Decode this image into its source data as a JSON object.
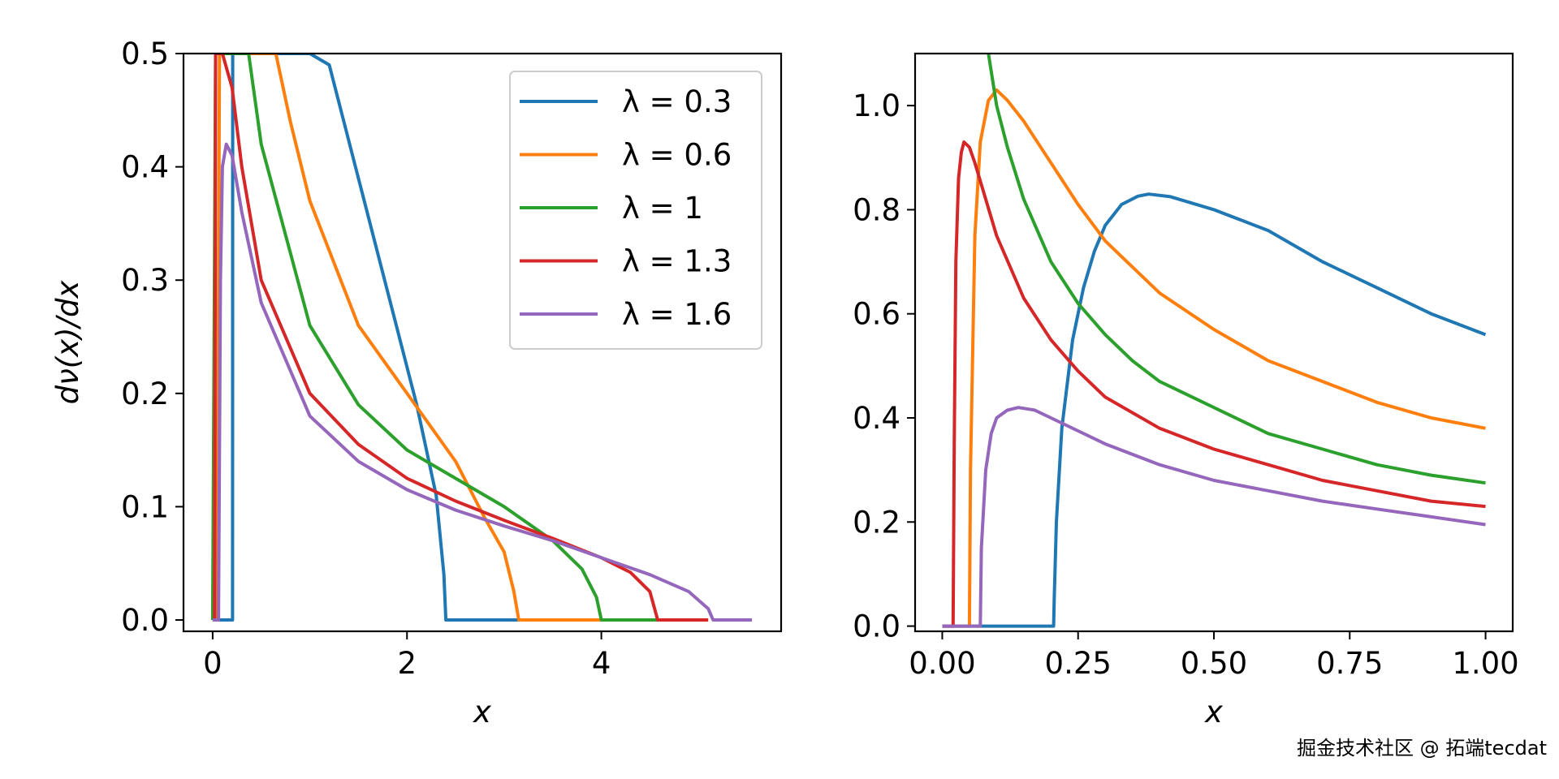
{
  "watermark": "掘金技术社区 @ 拓端tecdat",
  "chart_data": [
    {
      "type": "line",
      "xlabel": "x",
      "ylabel": "dν(x)/dx",
      "xlim": [
        -0.3,
        5.85
      ],
      "ylim": [
        -0.01,
        0.5
      ],
      "xticks": [
        0,
        2,
        4
      ],
      "xtick_labels": [
        "0",
        "2",
        "4"
      ],
      "yticks": [
        0.0,
        0.1,
        0.2,
        0.3,
        0.4,
        0.5
      ],
      "ytick_labels": [
        "0.0",
        "0.1",
        "0.2",
        "0.3",
        "0.4",
        "0.5"
      ],
      "legend_position": "top-right",
      "grid": false,
      "series": [
        {
          "name": "λ = 0.3",
          "color": "#1f77b4",
          "lambda": 0.3,
          "x": [
            0,
            0.2,
            0.205,
            0.206,
            0.22,
            0.25,
            0.3,
            0.5,
            1.0,
            1.2,
            1.5,
            1.8,
            2.1,
            2.3,
            2.38,
            2.4,
            2.41,
            2.6,
            3.0,
            3.6
          ],
          "y": [
            0,
            0,
            0,
            0.5,
            0.5,
            0.5,
            0.5,
            0.5,
            0.5,
            0.49,
            0.39,
            0.29,
            0.19,
            0.11,
            0.04,
            0.0,
            0,
            0,
            0,
            0
          ]
        },
        {
          "name": "λ = 0.6",
          "color": "#ff7f0e",
          "lambda": 0.6,
          "x": [
            0,
            0.047,
            0.07,
            0.1,
            0.3,
            0.5,
            0.65,
            0.8,
            1.0,
            1.5,
            2.0,
            2.5,
            2.8,
            3.0,
            3.1,
            3.15,
            3.6,
            4.1
          ],
          "y": [
            0,
            0,
            0.5,
            0.5,
            0.5,
            0.5,
            0.5,
            0.44,
            0.37,
            0.26,
            0.2,
            0.14,
            0.09,
            0.06,
            0.025,
            0,
            0,
            0
          ]
        },
        {
          "name": "λ = 1",
          "color": "#2ca02c",
          "lambda": 1,
          "x": [
            0,
            0.03,
            0.05,
            0.1,
            0.2,
            0.37,
            0.5,
            1.0,
            1.5,
            2.0,
            2.5,
            3.0,
            3.5,
            3.8,
            3.95,
            4.0,
            4.3,
            4.6
          ],
          "y": [
            0,
            0.5,
            0.5,
            0.5,
            0.5,
            0.5,
            0.42,
            0.26,
            0.19,
            0.15,
            0.125,
            0.1,
            0.07,
            0.045,
            0.02,
            0,
            0,
            0
          ]
        },
        {
          "name": "λ = 1.3",
          "color": "#d62728",
          "lambda": 1.3,
          "x": [
            0,
            0.02,
            0.03,
            0.1,
            0.2,
            0.3,
            0.5,
            1.0,
            1.5,
            2.0,
            2.5,
            3.0,
            3.5,
            4.0,
            4.3,
            4.5,
            4.58,
            4.8,
            5.1
          ],
          "y": [
            0,
            0,
            0.5,
            0.5,
            0.47,
            0.4,
            0.3,
            0.2,
            0.155,
            0.125,
            0.105,
            0.088,
            0.072,
            0.055,
            0.042,
            0.025,
            0,
            0,
            0
          ]
        },
        {
          "name": "λ = 1.6",
          "color": "#9467bd",
          "lambda": 1.6,
          "x": [
            0,
            0.06,
            0.08,
            0.1,
            0.14,
            0.2,
            0.3,
            0.5,
            1.0,
            1.5,
            2.0,
            2.5,
            3.0,
            3.5,
            4.0,
            4.5,
            4.9,
            5.1,
            5.15,
            5.3,
            5.55
          ],
          "y": [
            0,
            0,
            0.3,
            0.4,
            0.42,
            0.41,
            0.36,
            0.28,
            0.18,
            0.14,
            0.115,
            0.097,
            0.083,
            0.07,
            0.055,
            0.04,
            0.025,
            0.01,
            0,
            0,
            0
          ]
        }
      ]
    },
    {
      "type": "line",
      "xlabel": "x",
      "ylabel": "",
      "xlim": [
        -0.05,
        1.05
      ],
      "ylim": [
        -0.01,
        1.1
      ],
      "xticks": [
        0.0,
        0.25,
        0.5,
        0.75,
        1.0
      ],
      "xtick_labels": [
        "0.00",
        "0.25",
        "0.50",
        "0.75",
        "1.00"
      ],
      "yticks": [
        0.0,
        0.2,
        0.4,
        0.6,
        0.8,
        1.0
      ],
      "ytick_labels": [
        "0.0",
        "0.2",
        "0.4",
        "0.6",
        "0.8",
        "1.0"
      ],
      "grid": false,
      "series": [
        {
          "color": "#1f77b4",
          "lambda": 0.3,
          "x": [
            0,
            0.205,
            0.206,
            0.21,
            0.22,
            0.24,
            0.26,
            0.28,
            0.3,
            0.33,
            0.36,
            0.38,
            0.42,
            0.5,
            0.6,
            0.7,
            0.8,
            0.9,
            1.0
          ],
          "y": [
            0,
            0,
            0.05,
            0.2,
            0.38,
            0.55,
            0.65,
            0.72,
            0.77,
            0.81,
            0.826,
            0.83,
            0.825,
            0.8,
            0.76,
            0.7,
            0.65,
            0.6,
            0.56
          ]
        },
        {
          "color": "#ff7f0e",
          "lambda": 0.6,
          "x": [
            0,
            0.05,
            0.052,
            0.06,
            0.07,
            0.085,
            0.1,
            0.12,
            0.15,
            0.2,
            0.25,
            0.3,
            0.4,
            0.5,
            0.6,
            0.7,
            0.8,
            0.9,
            1.0
          ],
          "y": [
            0,
            0,
            0.3,
            0.75,
            0.93,
            1.01,
            1.03,
            1.01,
            0.97,
            0.89,
            0.81,
            0.74,
            0.64,
            0.57,
            0.51,
            0.47,
            0.43,
            0.4,
            0.38
          ]
        },
        {
          "color": "#2ca02c",
          "lambda": 1,
          "x": [
            0.085,
            0.1,
            0.12,
            0.15,
            0.2,
            0.25,
            0.3,
            0.35,
            0.4,
            0.5,
            0.6,
            0.7,
            0.8,
            0.9,
            1.0
          ],
          "y": [
            1.1,
            1.0,
            0.92,
            0.82,
            0.7,
            0.62,
            0.56,
            0.51,
            0.47,
            0.42,
            0.37,
            0.34,
            0.31,
            0.29,
            0.275
          ]
        },
        {
          "color": "#d62728",
          "lambda": 1.3,
          "x": [
            0,
            0.02,
            0.022,
            0.025,
            0.03,
            0.035,
            0.04,
            0.05,
            0.06,
            0.08,
            0.1,
            0.15,
            0.2,
            0.25,
            0.3,
            0.4,
            0.5,
            0.6,
            0.7,
            0.8,
            0.9,
            1.0
          ],
          "y": [
            0,
            0,
            0.35,
            0.7,
            0.86,
            0.91,
            0.93,
            0.92,
            0.89,
            0.82,
            0.75,
            0.63,
            0.55,
            0.49,
            0.44,
            0.38,
            0.34,
            0.31,
            0.28,
            0.26,
            0.24,
            0.23
          ]
        },
        {
          "color": "#9467bd",
          "lambda": 1.6,
          "x": [
            0,
            0.07,
            0.072,
            0.08,
            0.09,
            0.1,
            0.12,
            0.14,
            0.17,
            0.2,
            0.3,
            0.4,
            0.5,
            0.6,
            0.7,
            0.8,
            0.9,
            1.0
          ],
          "y": [
            0,
            0,
            0.15,
            0.3,
            0.37,
            0.4,
            0.415,
            0.42,
            0.415,
            0.4,
            0.35,
            0.31,
            0.28,
            0.26,
            0.24,
            0.225,
            0.21,
            0.195
          ]
        }
      ]
    }
  ]
}
